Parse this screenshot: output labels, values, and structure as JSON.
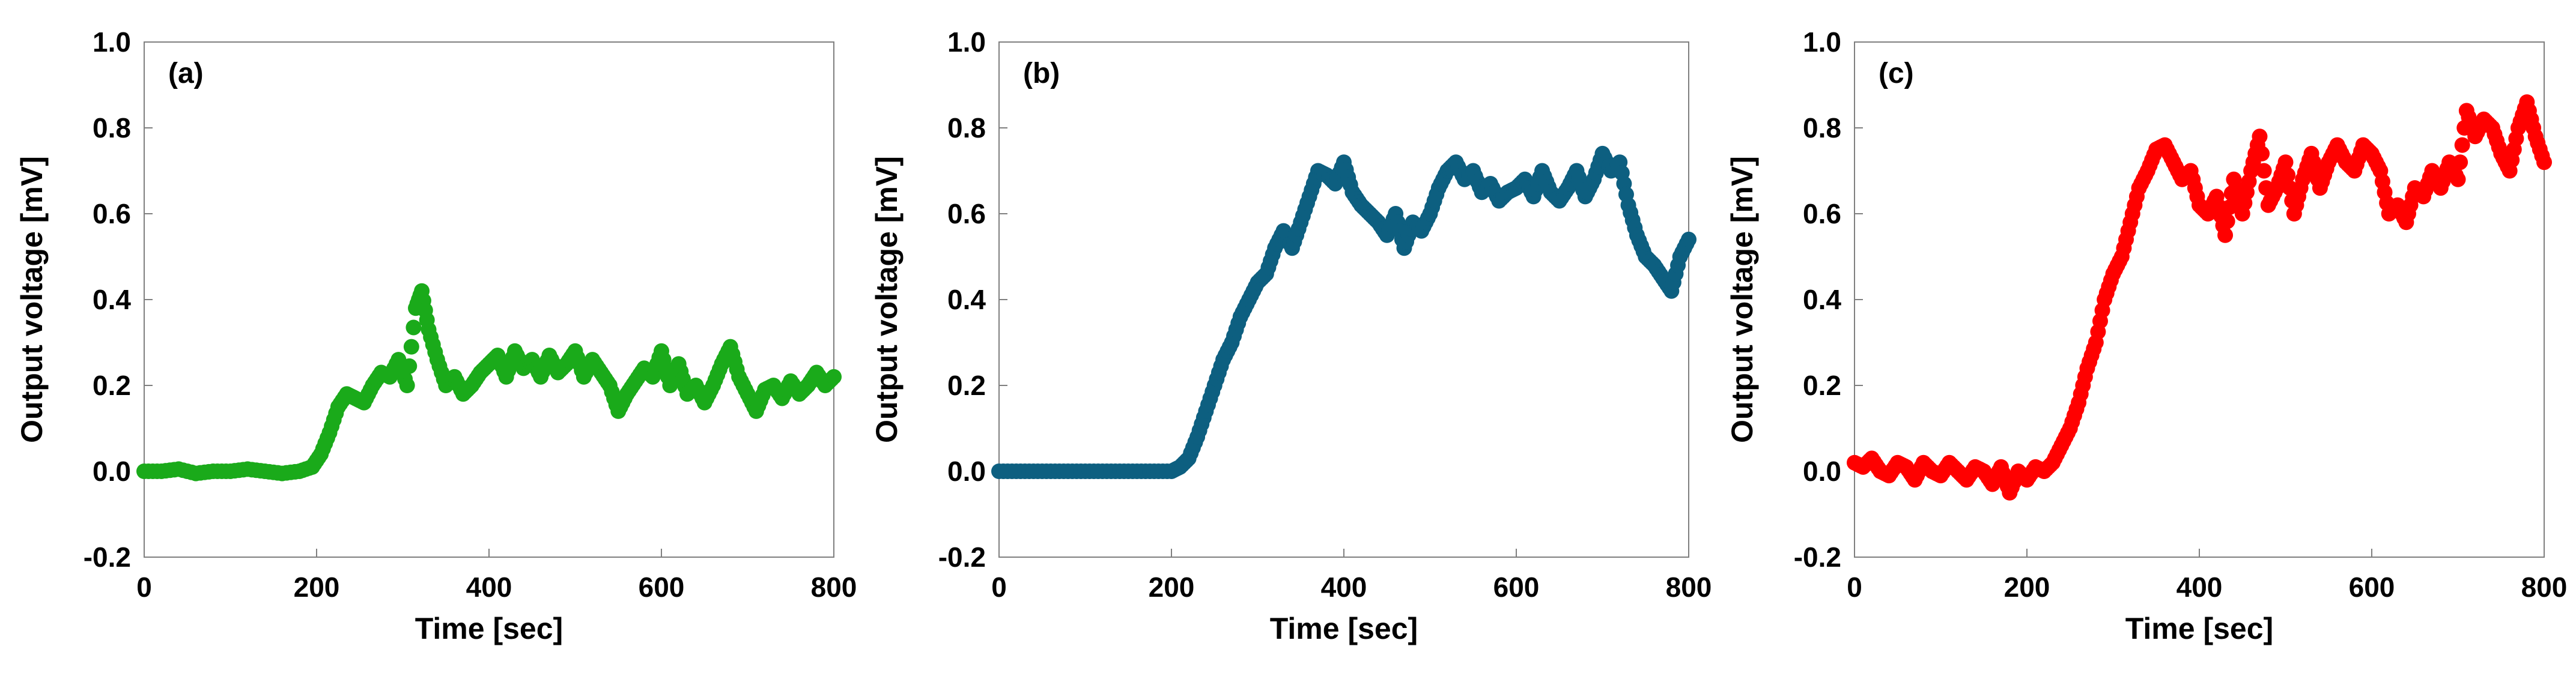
{
  "chart_data": [
    {
      "type": "scatter",
      "panel_label": "(a)",
      "xlabel": "Time [sec]",
      "ylabel": "Output voltage [mV]",
      "xlim": [
        0,
        800
      ],
      "ylim": [
        -0.2,
        1.0
      ],
      "xticks": [
        "0",
        "200",
        "400",
        "600",
        "800"
      ],
      "yticks": [
        "-0.2",
        "0.0",
        "0.2",
        "0.4",
        "0.6",
        "0.8",
        "1.0"
      ],
      "grid": false,
      "color": "#1aaa1a",
      "series": [
        {
          "x": [
            0,
            20,
            40,
            60,
            80,
            100,
            120,
            140,
            160,
            180,
            195,
            205,
            215,
            225,
            235,
            245,
            255,
            265,
            275,
            285,
            295,
            305,
            315,
            322,
            330,
            340,
            350,
            360,
            370,
            380,
            390,
            400,
            410,
            420,
            430,
            440,
            450,
            460,
            470,
            480,
            490,
            500,
            510,
            520,
            530,
            540,
            550,
            560,
            570,
            580,
            590,
            600,
            610,
            620,
            630,
            640,
            650,
            660,
            670,
            680,
            690,
            700,
            710,
            720,
            730,
            740,
            750,
            760,
            770,
            780,
            790,
            800
          ],
          "y": [
            0.0,
            0.0,
            0.005,
            -0.005,
            0.0,
            0.0,
            0.005,
            0.0,
            -0.005,
            0.0,
            0.01,
            0.04,
            0.09,
            0.15,
            0.18,
            0.17,
            0.16,
            0.2,
            0.23,
            0.22,
            0.26,
            0.2,
            0.38,
            0.42,
            0.33,
            0.26,
            0.2,
            0.22,
            0.18,
            0.2,
            0.23,
            0.25,
            0.27,
            0.22,
            0.28,
            0.24,
            0.26,
            0.22,
            0.27,
            0.23,
            0.25,
            0.28,
            0.22,
            0.26,
            0.23,
            0.2,
            0.14,
            0.18,
            0.21,
            0.24,
            0.22,
            0.28,
            0.2,
            0.25,
            0.18,
            0.2,
            0.16,
            0.2,
            0.25,
            0.29,
            0.22,
            0.18,
            0.14,
            0.19,
            0.2,
            0.17,
            0.21,
            0.18,
            0.2,
            0.23,
            0.2,
            0.22
          ]
        }
      ]
    },
    {
      "type": "scatter",
      "panel_label": "(b)",
      "xlabel": "Time [sec]",
      "ylabel": "Output voltage [mV]",
      "xlim": [
        0,
        800
      ],
      "ylim": [
        -0.2,
        1.0
      ],
      "xticks": [
        "0",
        "200",
        "400",
        "600",
        "800"
      ],
      "yticks": [
        "-0.2",
        "0.0",
        "0.2",
        "0.4",
        "0.6",
        "0.8",
        "1.0"
      ],
      "grid": false,
      "color": "#0d5f80",
      "series": [
        {
          "x": [
            0,
            20,
            40,
            60,
            80,
            100,
            120,
            140,
            160,
            180,
            200,
            210,
            220,
            230,
            240,
            250,
            260,
            270,
            280,
            290,
            300,
            310,
            320,
            330,
            340,
            350,
            360,
            370,
            380,
            390,
            400,
            410,
            420,
            430,
            440,
            450,
            460,
            470,
            480,
            490,
            500,
            510,
            520,
            530,
            540,
            550,
            560,
            570,
            580,
            590,
            600,
            610,
            620,
            630,
            640,
            650,
            660,
            670,
            680,
            690,
            700,
            710,
            720,
            730,
            740,
            750,
            760,
            770,
            780,
            790,
            800
          ],
          "y": [
            0.0,
            0.0,
            0.0,
            0.0,
            0.0,
            0.0,
            0.0,
            0.0,
            0.0,
            0.0,
            0.0,
            0.01,
            0.03,
            0.08,
            0.14,
            0.2,
            0.26,
            0.3,
            0.36,
            0.4,
            0.44,
            0.46,
            0.52,
            0.56,
            0.52,
            0.58,
            0.64,
            0.7,
            0.69,
            0.67,
            0.72,
            0.65,
            0.62,
            0.6,
            0.58,
            0.55,
            0.6,
            0.52,
            0.58,
            0.56,
            0.6,
            0.66,
            0.7,
            0.72,
            0.68,
            0.7,
            0.65,
            0.67,
            0.63,
            0.65,
            0.66,
            0.68,
            0.64,
            0.7,
            0.65,
            0.63,
            0.66,
            0.7,
            0.64,
            0.68,
            0.74,
            0.7,
            0.72,
            0.62,
            0.55,
            0.5,
            0.48,
            0.45,
            0.42,
            0.5,
            0.54
          ]
        }
      ]
    },
    {
      "type": "scatter",
      "panel_label": "(c)",
      "xlabel": "Time [sec]",
      "ylabel": "Output voltage [mV]",
      "xlim": [
        0,
        800
      ],
      "ylim": [
        -0.2,
        1.0
      ],
      "xticks": [
        "0",
        "200",
        "400",
        "600",
        "800"
      ],
      "yticks": [
        "-0.2",
        "0.0",
        "0.2",
        "0.4",
        "0.6",
        "0.8",
        "1.0"
      ],
      "grid": false,
      "color": "#ff0000",
      "series": [
        {
          "x": [
            0,
            10,
            20,
            30,
            40,
            50,
            60,
            70,
            80,
            90,
            100,
            110,
            120,
            130,
            140,
            150,
            160,
            170,
            180,
            190,
            200,
            210,
            220,
            230,
            240,
            250,
            260,
            270,
            280,
            290,
            300,
            310,
            320,
            330,
            340,
            350,
            360,
            370,
            380,
            390,
            400,
            410,
            420,
            430,
            440,
            450,
            460,
            470,
            480,
            490,
            500,
            510,
            520,
            530,
            540,
            550,
            560,
            570,
            580,
            590,
            600,
            610,
            620,
            630,
            640,
            650,
            660,
            670,
            680,
            690,
            700,
            710,
            720,
            730,
            740,
            750,
            760,
            770,
            780,
            790,
            800
          ],
          "y": [
            0.02,
            0.01,
            0.03,
            0.0,
            -0.01,
            0.02,
            0.01,
            -0.02,
            0.02,
            0.0,
            -0.01,
            0.02,
            0.0,
            -0.02,
            0.01,
            0.0,
            -0.03,
            0.01,
            -0.05,
            0.0,
            -0.02,
            0.01,
            0.0,
            0.02,
            0.06,
            0.1,
            0.16,
            0.24,
            0.3,
            0.4,
            0.46,
            0.5,
            0.58,
            0.66,
            0.7,
            0.75,
            0.76,
            0.72,
            0.68,
            0.7,
            0.62,
            0.6,
            0.64,
            0.55,
            0.68,
            0.6,
            0.7,
            0.78,
            0.62,
            0.66,
            0.72,
            0.6,
            0.68,
            0.74,
            0.66,
            0.72,
            0.76,
            0.72,
            0.7,
            0.76,
            0.74,
            0.7,
            0.6,
            0.62,
            0.58,
            0.66,
            0.64,
            0.7,
            0.66,
            0.72,
            0.68,
            0.84,
            0.78,
            0.82,
            0.8,
            0.74,
            0.7,
            0.8,
            0.86,
            0.78,
            0.72
          ]
        }
      ]
    }
  ]
}
